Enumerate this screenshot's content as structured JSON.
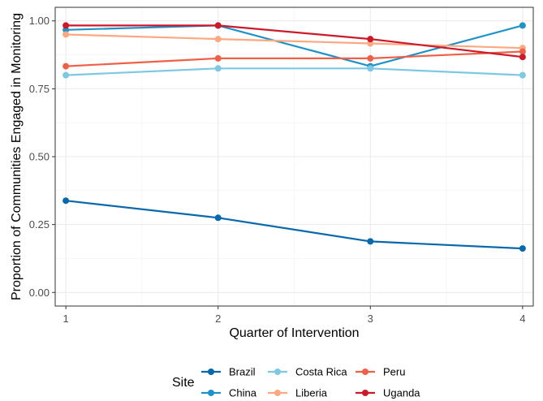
{
  "chart_data": {
    "type": "line",
    "xlabel": "Quarter of Intervention",
    "ylabel": "Proportion of Communities Engaged in Monitoring",
    "x": [
      1,
      2,
      3,
      4
    ],
    "x_ticks": [
      "1",
      "2",
      "3",
      "4"
    ],
    "xlim": [
      0.93,
      4.07
    ],
    "y_ticks": [
      "0.00",
      "0.25",
      "0.50",
      "0.75",
      "1.00"
    ],
    "ylim": [
      -0.05,
      1.05
    ],
    "grid": true,
    "legend_title": "Site",
    "legend_position": "bottom",
    "series": [
      {
        "name": "Brazil",
        "color": "#0868ac",
        "values": [
          0.338,
          0.275,
          0.188,
          0.162
        ]
      },
      {
        "name": "China",
        "color": "#1f93c7",
        "values": [
          0.967,
          0.983,
          0.833,
          0.983
        ]
      },
      {
        "name": "Costa Rica",
        "color": "#7ec8e3",
        "values": [
          0.8,
          0.825,
          0.825,
          0.8
        ]
      },
      {
        "name": "Liberia",
        "color": "#fca882",
        "values": [
          0.95,
          0.933,
          0.917,
          0.9
        ]
      },
      {
        "name": "Peru",
        "color": "#ef6048",
        "values": [
          0.833,
          0.862,
          0.862,
          0.887
        ]
      },
      {
        "name": "Uganda",
        "color": "#cb1a2a",
        "values": [
          0.983,
          0.983,
          0.933,
          0.867
        ]
      }
    ]
  }
}
